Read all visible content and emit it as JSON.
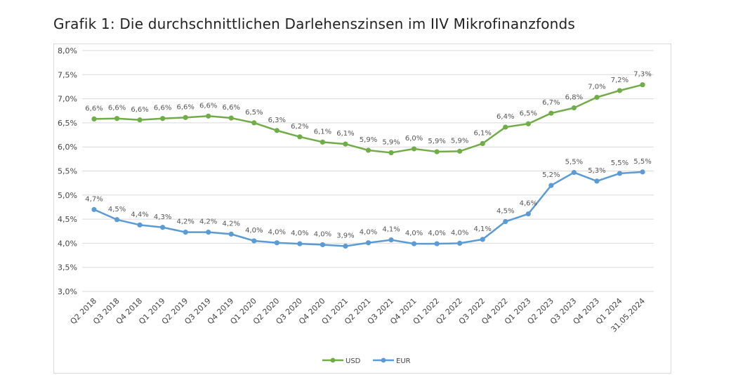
{
  "title": "Grafik 1: Die durchschnittlichen Darlehenszinsen im IIV Mikrofinanzfonds",
  "chart_data": {
    "type": "line",
    "title": "Grafik 1: Die durchschnittlichen Darlehenszinsen im IIV Mikrofinanzfonds",
    "xlabel": "",
    "ylabel": "",
    "categories": [
      "Q2 2018",
      "Q3 2018",
      "Q4 2018",
      "Q1 2019",
      "Q2 2019",
      "Q3 2019",
      "Q4 2019",
      "Q1 2020",
      "Q2 2020",
      "Q3 2020",
      "Q4 2020",
      "Q1 2021",
      "Q2 2021",
      "Q3 2021",
      "Q4 2021",
      "Q1 2022",
      "Q2 2022",
      "Q3 2022",
      "Q4 2022",
      "Q1 2023",
      "Q2 2023",
      "Q3 2023",
      "Q4 2023",
      "Q1 2024",
      "31.05.2024"
    ],
    "ylim": [
      3.0,
      8.0
    ],
    "yticks": [
      3.0,
      3.5,
      4.0,
      4.5,
      5.0,
      5.5,
      6.0,
      6.5,
      7.0,
      7.5,
      8.0
    ],
    "ytick_labels": [
      "3,0%",
      "3,5%",
      "4,0%",
      "4,5%",
      "5,0%",
      "5,5%",
      "6,0%",
      "6,5%",
      "7,0%",
      "7,5%",
      "8,0%"
    ],
    "grid": true,
    "legend_position": "bottom",
    "series": [
      {
        "name": "USD",
        "color": "#70ad47",
        "values": [
          6.58,
          6.59,
          6.56,
          6.59,
          6.61,
          6.64,
          6.6,
          6.5,
          6.34,
          6.21,
          6.1,
          6.06,
          5.93,
          5.88,
          5.96,
          5.9,
          5.91,
          6.07,
          6.41,
          6.48,
          6.7,
          6.81,
          7.03,
          7.17,
          7.29
        ],
        "labels": [
          "6,6%",
          "6,6%",
          "6,6%",
          "6,6%",
          "6,6%",
          "6,6%",
          "6,6%",
          "6,5%",
          "6,3%",
          "6,2%",
          "6,1%",
          "6,1%",
          "5,9%",
          "5,9%",
          "6,0%",
          "5,9%",
          "5,9%",
          "6,1%",
          "6,4%",
          "6,5%",
          "6,7%",
          "6,8%",
          "7,0%",
          "7,2%",
          "7,3%"
        ]
      },
      {
        "name": "EUR",
        "color": "#5b9bd5",
        "values": [
          4.7,
          4.49,
          4.38,
          4.33,
          4.23,
          4.23,
          4.19,
          4.05,
          4.01,
          3.99,
          3.97,
          3.94,
          4.01,
          4.07,
          3.99,
          3.99,
          4.0,
          4.08,
          4.45,
          4.61,
          5.2,
          5.47,
          5.29,
          5.45,
          5.48
        ],
        "labels": [
          "4,7%",
          "4,5%",
          "4,4%",
          "4,3%",
          "4,2%",
          "4,2%",
          "4,2%",
          "4,0%",
          "4,0%",
          "4,0%",
          "4,0%",
          "3,9%",
          "4,0%",
          "4,1%",
          "4,0%",
          "4,0%",
          "4,0%",
          "4,1%",
          "4,5%",
          "4,6%",
          "5,2%",
          "5,5%",
          "5,3%",
          "5,5%",
          "5,5%"
        ]
      }
    ]
  }
}
